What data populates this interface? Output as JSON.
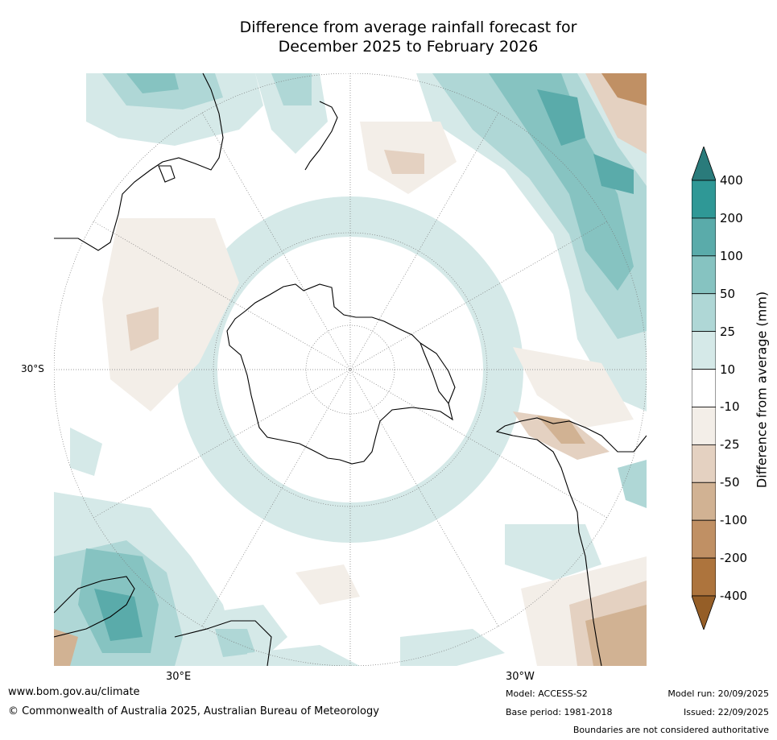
{
  "title": {
    "line1": "Difference from average rainfall forecast for",
    "line2": "December 2025 to February 2026"
  },
  "map": {
    "projection": "south-polar-stereographic",
    "lat_label": "30°S",
    "lon_labels": {
      "east": "30°E",
      "west": "30°W"
    }
  },
  "colorbar": {
    "label": "Difference from average (mm)",
    "ticks": [
      "400",
      "200",
      "100",
      "50",
      "25",
      "10",
      "-10",
      "-25",
      "-50",
      "-100",
      "-200",
      "-400"
    ],
    "bands": [
      {
        "range": ">400",
        "color": "#2a7b7b"
      },
      {
        "range": "200 to 400",
        "color": "#2f9896"
      },
      {
        "range": "100 to 200",
        "color": "#5aabaa"
      },
      {
        "range": "50 to 100",
        "color": "#86c3c1"
      },
      {
        "range": "25 to 50",
        "color": "#afd7d6"
      },
      {
        "range": "10 to 25",
        "color": "#d5e9e8"
      },
      {
        "range": "-10 to 10",
        "color": "#ffffff"
      },
      {
        "range": "-25 to -10",
        "color": "#f3eee8"
      },
      {
        "range": "-50 to -25",
        "color": "#e4d1c1"
      },
      {
        "range": "-100 to -50",
        "color": "#d1b293"
      },
      {
        "range": "-200 to -100",
        "color": "#c09064"
      },
      {
        "range": "-400 to -200",
        "color": "#ad743d"
      },
      {
        "range": "<-400",
        "color": "#955e27"
      }
    ]
  },
  "footer": {
    "website": "www.bom.gov.au/climate",
    "copyright": "© Commonwealth of Australia 2025, Australian Bureau of Meteorology",
    "model": "Model: ACCESS-S2",
    "base_period": "Base period: 1981-2018",
    "model_run": "Model run: 20/09/2025",
    "issued": "Issued: 22/09/2025",
    "disclaimer": "Boundaries are not considered authoritative"
  }
}
